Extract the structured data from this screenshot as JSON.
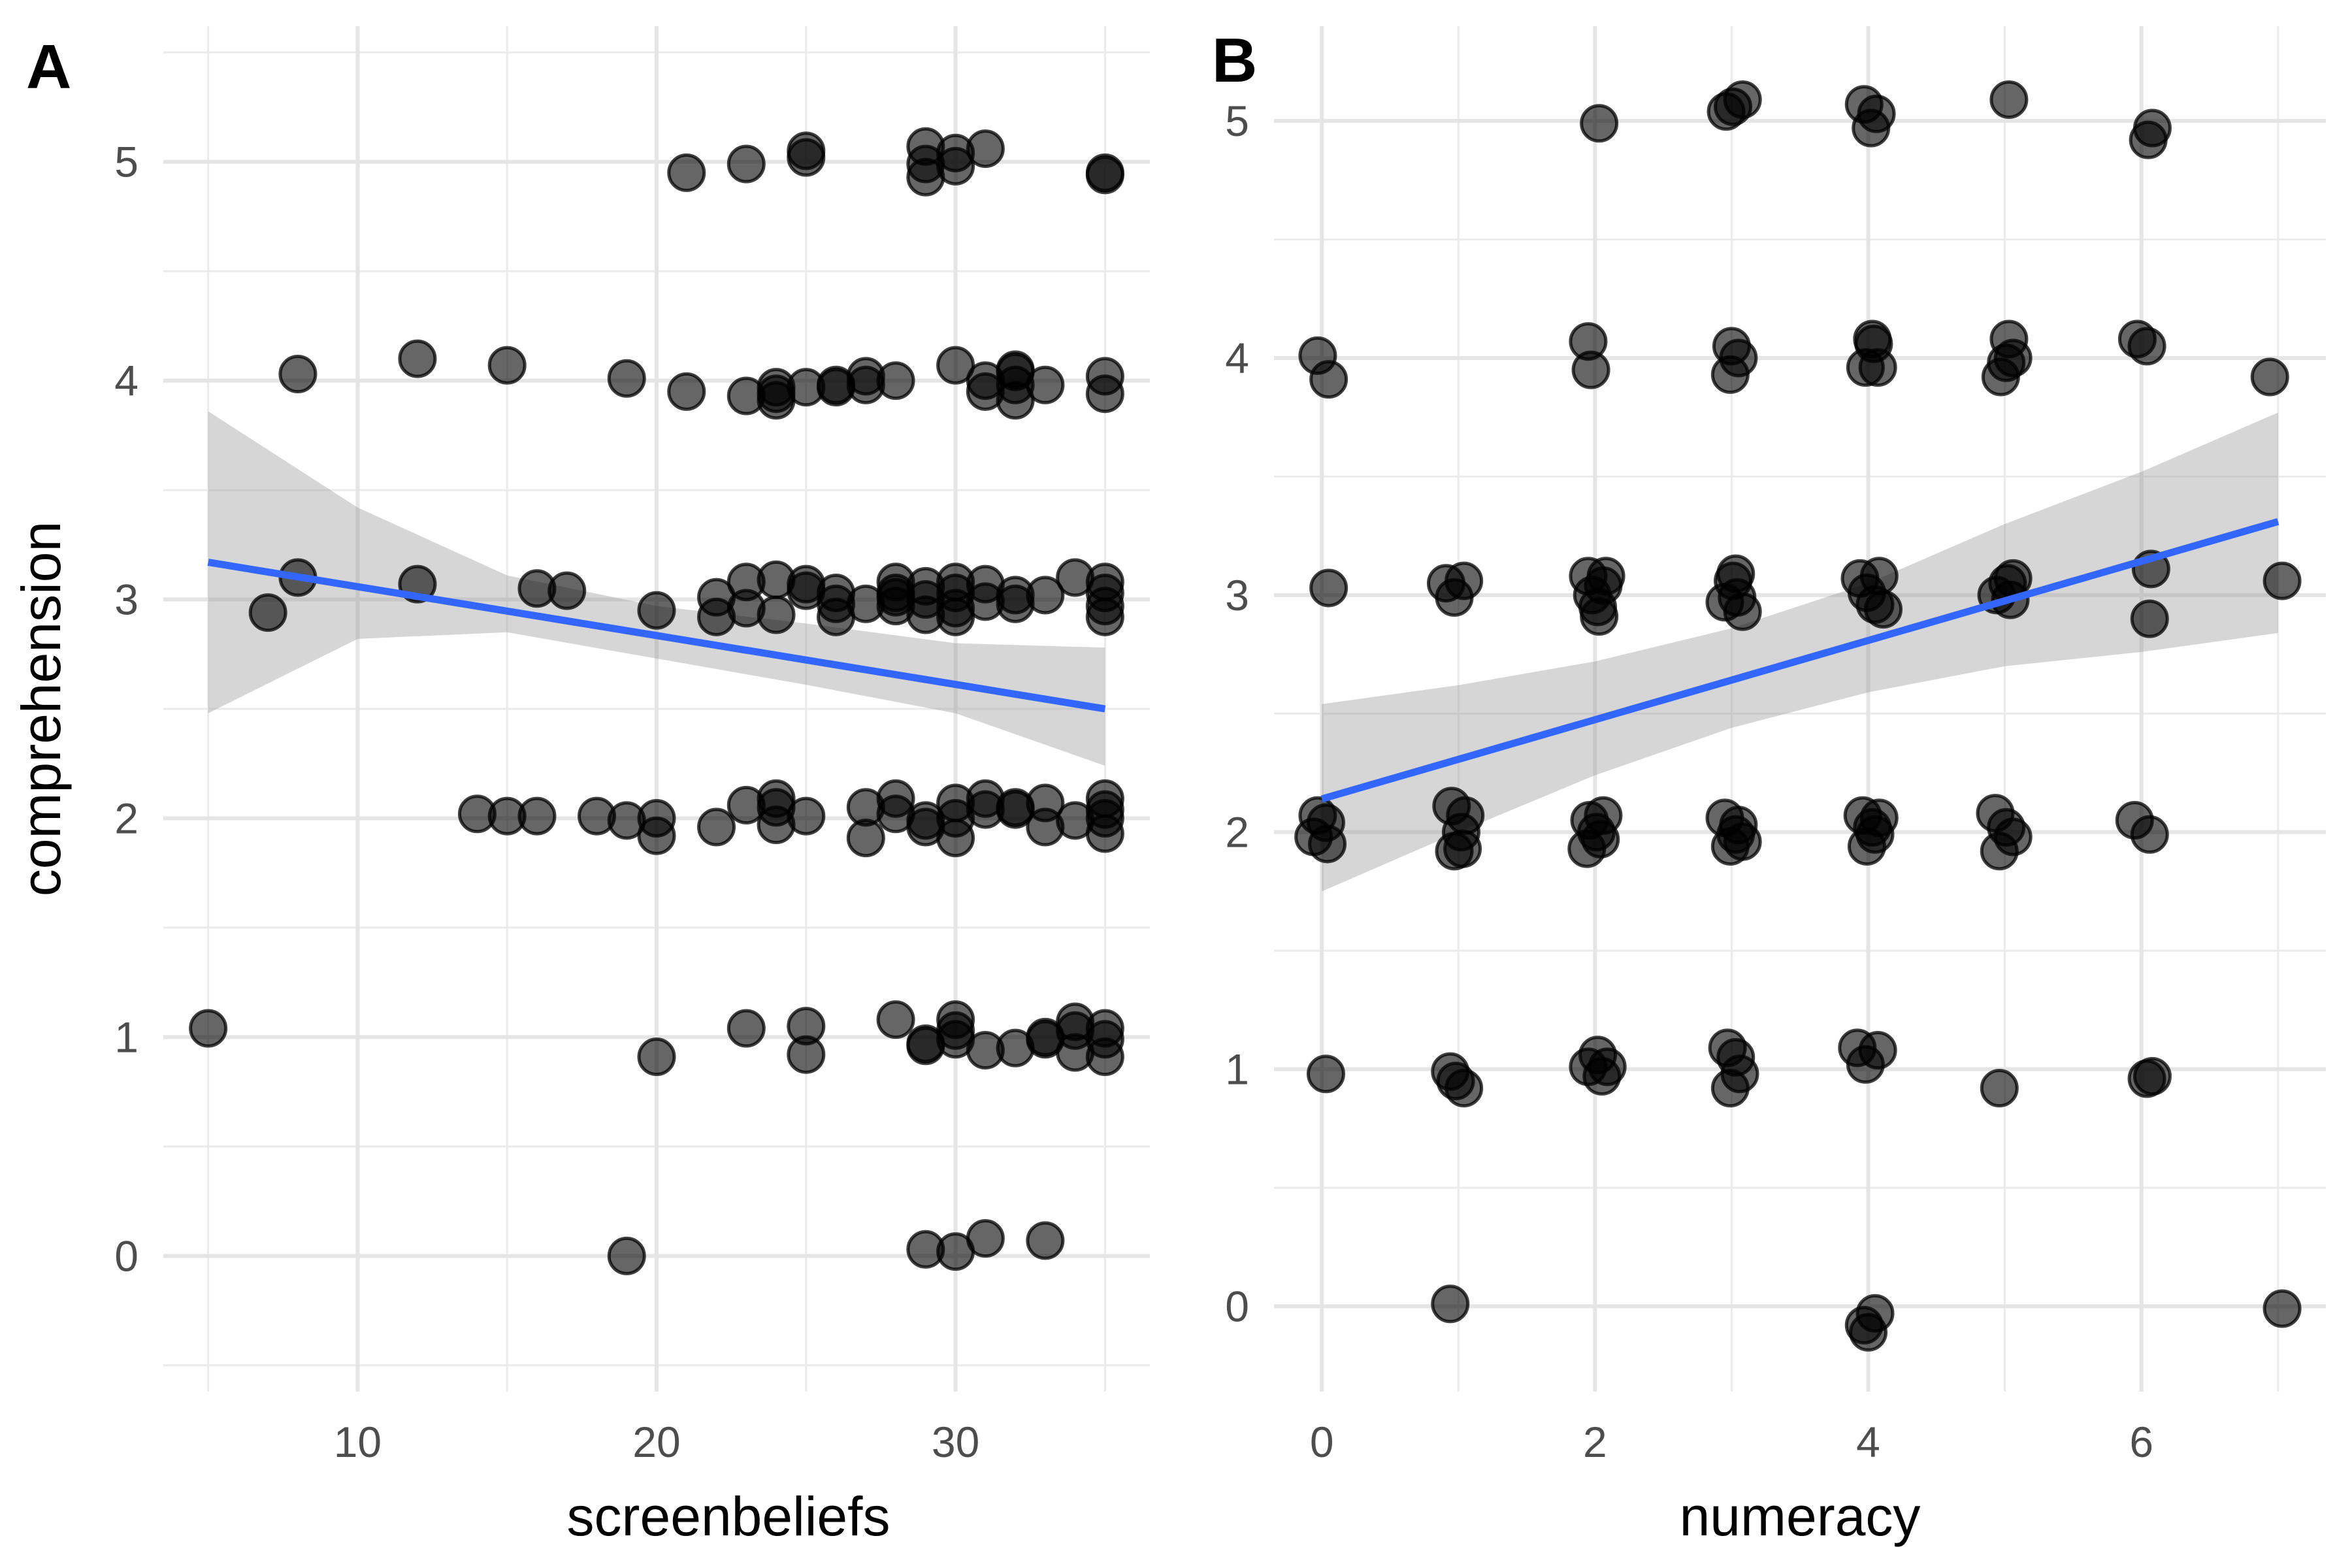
{
  "chart_data": [
    {
      "type": "scatter",
      "panel_tag": "A",
      "xlabel": "screenbeliefs",
      "ylabel": "comprehension",
      "xlim": [
        3.5,
        36.5
      ],
      "ylim": [
        -0.62,
        5.62
      ],
      "x_ticks": [
        10,
        20,
        30
      ],
      "y_ticks": [
        0,
        1,
        2,
        3,
        4,
        5
      ],
      "grid": true,
      "point_color": "#000000",
      "trend": {
        "x": [
          5,
          35
        ],
        "y": [
          3.17,
          2.5
        ],
        "ci_upper": [
          3.86,
          2.78
        ],
        "ci_lower": [
          2.48,
          2.24
        ],
        "ci_x": [
          5,
          10,
          15,
          20,
          25,
          30,
          35
        ],
        "ci_upper_all": [
          3.86,
          3.42,
          3.11,
          2.97,
          2.89,
          2.8,
          2.78
        ],
        "ci_lower_all": [
          2.48,
          2.82,
          2.85,
          2.73,
          2.61,
          2.48,
          2.24
        ],
        "color": "#3366FF"
      },
      "points": [
        [
          21,
          4.95
        ],
        [
          23,
          4.99
        ],
        [
          25,
          5.05
        ],
        [
          25,
          5.02
        ],
        [
          29,
          5.07
        ],
        [
          29,
          4.99
        ],
        [
          29,
          4.93
        ],
        [
          30,
          5.04
        ],
        [
          30,
          4.98
        ],
        [
          31,
          5.06
        ],
        [
          35,
          4.95
        ],
        [
          35,
          4.94
        ],
        [
          8,
          4.03
        ],
        [
          12,
          4.1
        ],
        [
          15,
          4.07
        ],
        [
          19,
          4.01
        ],
        [
          21,
          3.95
        ],
        [
          23,
          3.93
        ],
        [
          24,
          3.94
        ],
        [
          24,
          3.97
        ],
        [
          24,
          3.91
        ],
        [
          25,
          3.97
        ],
        [
          26,
          3.97
        ],
        [
          26,
          3.98
        ],
        [
          27,
          4.02
        ],
        [
          27,
          3.98
        ],
        [
          28,
          4.0
        ],
        [
          30,
          4.07
        ],
        [
          31,
          3.95
        ],
        [
          31,
          4.0
        ],
        [
          32,
          4.04
        ],
        [
          32,
          3.98
        ],
        [
          32,
          3.91
        ],
        [
          32,
          4.05
        ],
        [
          33,
          3.98
        ],
        [
          35,
          4.02
        ],
        [
          35,
          3.94
        ],
        [
          7,
          2.94
        ],
        [
          8,
          3.1
        ],
        [
          12,
          3.07
        ],
        [
          16,
          3.05
        ],
        [
          17,
          3.04
        ],
        [
          20,
          2.95
        ],
        [
          22,
          3.01
        ],
        [
          22,
          2.92
        ],
        [
          23,
          3.08
        ],
        [
          23,
          2.96
        ],
        [
          24,
          3.09
        ],
        [
          24,
          2.93
        ],
        [
          25,
          3.07
        ],
        [
          25,
          3.04
        ],
        [
          26,
          3.03
        ],
        [
          26,
          2.98
        ],
        [
          26,
          2.92
        ],
        [
          27,
          2.98
        ],
        [
          28,
          3.08
        ],
        [
          28,
          3.03
        ],
        [
          28,
          2.97
        ],
        [
          28,
          3.01
        ],
        [
          29,
          3.06
        ],
        [
          29,
          3.0
        ],
        [
          29,
          2.93
        ],
        [
          30,
          3.08
        ],
        [
          30,
          3.03
        ],
        [
          30,
          2.96
        ],
        [
          30,
          2.92
        ],
        [
          31,
          3.07
        ],
        [
          31,
          2.99
        ],
        [
          32,
          3.02
        ],
        [
          32,
          2.98
        ],
        [
          33,
          3.02
        ],
        [
          34,
          3.1
        ],
        [
          35,
          3.08
        ],
        [
          35,
          3.03
        ],
        [
          35,
          2.97
        ],
        [
          35,
          2.92
        ],
        [
          14,
          2.02
        ],
        [
          15,
          2.01
        ],
        [
          16,
          2.01
        ],
        [
          18,
          2.01
        ],
        [
          19,
          1.99
        ],
        [
          20,
          2.0
        ],
        [
          20,
          1.92
        ],
        [
          22,
          1.96
        ],
        [
          23,
          2.06
        ],
        [
          24,
          2.09
        ],
        [
          24,
          2.05
        ],
        [
          24,
          1.97
        ],
        [
          25,
          2.01
        ],
        [
          27,
          2.05
        ],
        [
          27,
          1.91
        ],
        [
          28,
          2.09
        ],
        [
          28,
          2.02
        ],
        [
          29,
          1.96
        ],
        [
          29,
          1.99
        ],
        [
          30,
          2.07
        ],
        [
          30,
          2.0
        ],
        [
          30,
          1.91
        ],
        [
          31,
          2.09
        ],
        [
          31,
          2.04
        ],
        [
          32,
          2.04
        ],
        [
          32,
          2.05
        ],
        [
          33,
          2.07
        ],
        [
          33,
          1.96
        ],
        [
          34,
          1.99
        ],
        [
          35,
          2.09
        ],
        [
          35,
          2.04
        ],
        [
          35,
          2.0
        ],
        [
          35,
          1.93
        ],
        [
          5,
          1.04
        ],
        [
          20,
          0.91
        ],
        [
          23,
          1.04
        ],
        [
          25,
          1.05
        ],
        [
          25,
          0.92
        ],
        [
          28,
          1.08
        ],
        [
          29,
          0.97
        ],
        [
          29,
          0.96
        ],
        [
          30,
          1.08
        ],
        [
          30,
          1.03
        ],
        [
          30,
          0.99
        ],
        [
          31,
          0.94
        ],
        [
          32,
          0.95
        ],
        [
          33,
          1.0
        ],
        [
          33,
          0.99
        ],
        [
          34,
          1.07
        ],
        [
          34,
          1.03
        ],
        [
          34,
          0.93
        ],
        [
          35,
          1.04
        ],
        [
          35,
          0.99
        ],
        [
          35,
          0.91
        ],
        [
          19,
          0.0
        ],
        [
          29,
          0.03
        ],
        [
          30,
          0.02
        ],
        [
          31,
          0.08
        ],
        [
          33,
          0.07
        ]
      ]
    },
    {
      "type": "scatter",
      "panel_tag": "B",
      "xlabel": "numeracy",
      "ylabel": "",
      "xlim": [
        -0.35,
        7.35
      ],
      "ylim": [
        -0.36,
        5.4
      ],
      "x_ticks": [
        0,
        2,
        4,
        6
      ],
      "y_ticks": [
        0,
        1,
        2,
        3,
        4,
        5
      ],
      "grid": true,
      "point_color": "#000000",
      "trend": {
        "x": [
          0,
          7
        ],
        "y": [
          2.14,
          3.31
        ],
        "ci_x": [
          0,
          1,
          2,
          3,
          4,
          5,
          6,
          7
        ],
        "ci_upper_all": [
          2.54,
          2.62,
          2.72,
          2.86,
          3.05,
          3.3,
          3.52,
          3.77
        ],
        "ci_lower_all": [
          1.75,
          2.0,
          2.24,
          2.44,
          2.59,
          2.7,
          2.76,
          2.84
        ],
        "color": "#3366FF"
      },
      "points": [
        [
          2.03,
          4.99
        ],
        [
          2.96,
          5.04
        ],
        [
          3.01,
          5.06
        ],
        [
          3.08,
          5.09
        ],
        [
          3.97,
          5.07
        ],
        [
          4.02,
          4.97
        ],
        [
          4.06,
          5.03
        ],
        [
          5.03,
          5.09
        ],
        [
          6.05,
          4.92
        ],
        [
          6.08,
          4.97
        ],
        [
          -0.03,
          4.01
        ],
        [
          0.05,
          3.91
        ],
        [
          1.95,
          4.07
        ],
        [
          1.97,
          3.95
        ],
        [
          3.0,
          4.05
        ],
        [
          2.99,
          3.93
        ],
        [
          3.05,
          4.0
        ],
        [
          3.98,
          3.96
        ],
        [
          4.03,
          4.08
        ],
        [
          4.07,
          3.96
        ],
        [
          4.04,
          4.06
        ],
        [
          4.97,
          3.92
        ],
        [
          5.03,
          4.08
        ],
        [
          5.06,
          4.0
        ],
        [
          5.01,
          3.98
        ],
        [
          5.97,
          4.08
        ],
        [
          6.04,
          4.05
        ],
        [
          6.94,
          3.92
        ],
        [
          0.05,
          3.03
        ],
        [
          0.91,
          3.05
        ],
        [
          0.97,
          2.99
        ],
        [
          1.04,
          3.06
        ],
        [
          1.95,
          3.08
        ],
        [
          1.98,
          3.0
        ],
        [
          2.02,
          2.95
        ],
        [
          2.06,
          3.04
        ],
        [
          2.03,
          2.91
        ],
        [
          2.08,
          3.08
        ],
        [
          2.95,
          2.97
        ],
        [
          3.01,
          3.06
        ],
        [
          3.04,
          2.99
        ],
        [
          3.08,
          2.93
        ],
        [
          3.03,
          3.09
        ],
        [
          3.94,
          3.07
        ],
        [
          3.99,
          3.01
        ],
        [
          4.05,
          2.96
        ],
        [
          4.08,
          3.08
        ],
        [
          4.11,
          2.94
        ],
        [
          4.94,
          3.0
        ],
        [
          5.02,
          3.05
        ],
        [
          5.06,
          3.07
        ],
        [
          5.04,
          2.98
        ],
        [
          6.07,
          3.11
        ],
        [
          6.06,
          2.9
        ],
        [
          7.03,
          3.06
        ],
        [
          -0.06,
          1.98
        ],
        [
          -0.03,
          2.07
        ],
        [
          0.03,
          2.04
        ],
        [
          0.04,
          1.95
        ],
        [
          0.95,
          2.11
        ],
        [
          1.02,
          2.0
        ],
        [
          0.97,
          1.92
        ],
        [
          1.05,
          2.07
        ],
        [
          1.03,
          1.93
        ],
        [
          1.96,
          2.05
        ],
        [
          1.94,
          1.93
        ],
        [
          2.01,
          2.0
        ],
        [
          2.04,
          1.97
        ],
        [
          2.06,
          2.07
        ],
        [
          2.95,
          2.06
        ],
        [
          2.99,
          1.94
        ],
        [
          3.05,
          2.03
        ],
        [
          3.08,
          1.96
        ],
        [
          3.03,
          1.99
        ],
        [
          3.96,
          2.07
        ],
        [
          3.99,
          1.94
        ],
        [
          4.03,
          2.02
        ],
        [
          4.08,
          2.06
        ],
        [
          4.05,
          1.99
        ],
        [
          4.93,
          2.08
        ],
        [
          4.96,
          1.92
        ],
        [
          5.01,
          2.02
        ],
        [
          5.06,
          1.98
        ],
        [
          5.95,
          2.05
        ],
        [
          6.06,
          1.99
        ],
        [
          0.03,
          0.98
        ],
        [
          0.94,
          0.99
        ],
        [
          0.98,
          0.95
        ],
        [
          1.04,
          0.92
        ],
        [
          1.95,
          1.01
        ],
        [
          2.02,
          1.06
        ],
        [
          2.05,
          0.97
        ],
        [
          2.09,
          1.01
        ],
        [
          2.97,
          1.09
        ],
        [
          2.99,
          0.92
        ],
        [
          3.06,
          0.98
        ],
        [
          3.03,
          1.05
        ],
        [
          3.92,
          1.09
        ],
        [
          3.98,
          1.02
        ],
        [
          4.07,
          1.08
        ],
        [
          4.96,
          0.92
        ],
        [
          6.04,
          0.96
        ],
        [
          6.08,
          0.97
        ],
        [
          0.94,
          0.01
        ],
        [
          3.97,
          -0.08
        ],
        [
          4.05,
          -0.03
        ],
        [
          4.0,
          -0.11
        ],
        [
          7.03,
          -0.01
        ]
      ]
    }
  ]
}
